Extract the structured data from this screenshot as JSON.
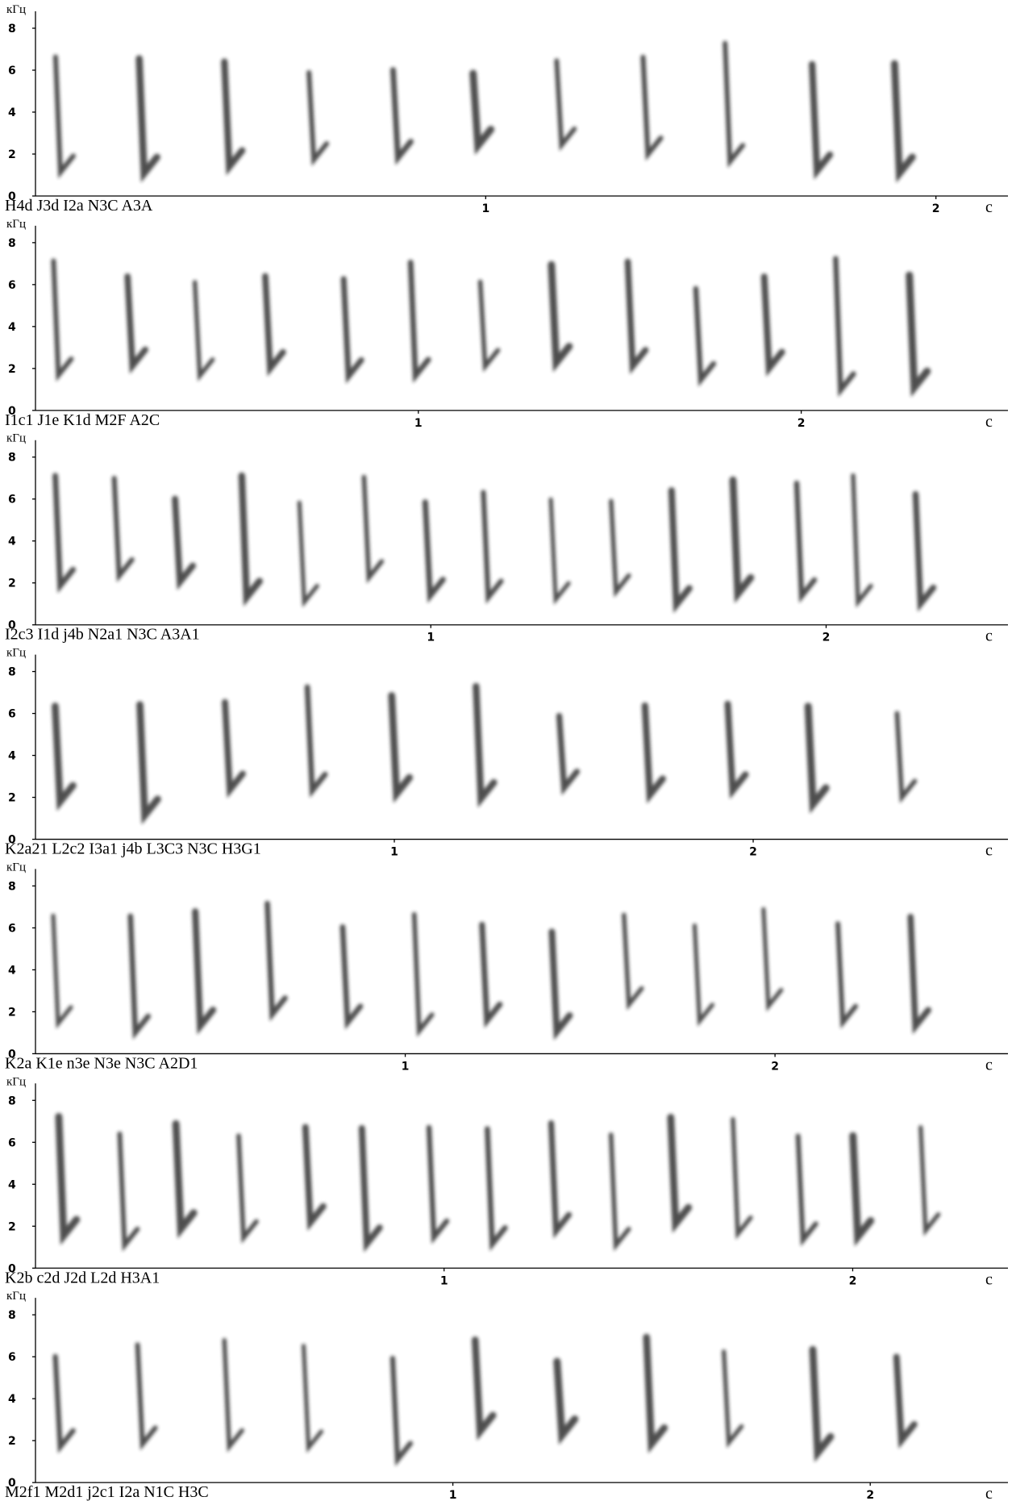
{
  "chart_data": [
    {
      "type": "spectrogram",
      "title": "H4d J3d I2a N3C A3A",
      "y_label": "кГц",
      "x_label": "с",
      "xlim": [
        0,
        2.16
      ],
      "ylim": [
        0,
        8.5
      ],
      "xticks": [
        1,
        2
      ],
      "yticks": [
        0,
        2,
        4,
        6,
        8
      ]
    },
    {
      "type": "spectrogram",
      "title": "I1c1 J1e K1d M2F A2C",
      "y_label": "кГц",
      "x_label": "с",
      "xlim": [
        0,
        2.54
      ],
      "ylim": [
        0,
        8.5
      ],
      "xticks": [
        1,
        2
      ],
      "yticks": [
        0,
        2,
        4,
        6,
        8
      ]
    },
    {
      "type": "spectrogram",
      "title": "I2c3 I1d j4b N2a1 N3C A3A1",
      "y_label": "кГц",
      "x_label": "с",
      "xlim": [
        0,
        2.46
      ],
      "ylim": [
        0,
        8.5
      ],
      "xticks": [
        1,
        2
      ],
      "yticks": [
        0,
        2,
        4,
        6,
        8
      ]
    },
    {
      "type": "spectrogram",
      "title": "K2a21 L2c2 I3a1 j4b L3C3 N3C H3G1",
      "y_label": "кГц",
      "x_label": "с",
      "xlim": [
        0,
        2.71
      ],
      "ylim": [
        0,
        8.5
      ],
      "xticks": [
        1,
        2
      ],
      "yticks": [
        0,
        2,
        4,
        6,
        8
      ]
    },
    {
      "type": "spectrogram",
      "title": "K2a K1e n3e N3e N3C A2D1",
      "y_label": "кГц",
      "x_label": "с",
      "xlim": [
        0,
        2.63
      ],
      "ylim": [
        0,
        8.5
      ],
      "xticks": [
        1,
        2
      ],
      "yticks": [
        0,
        2,
        4,
        6,
        8
      ]
    },
    {
      "type": "spectrogram",
      "title": "K2b c2d J2d L2d H3A1",
      "y_label": "кГц",
      "x_label": "с",
      "xlim": [
        0,
        2.38
      ],
      "ylim": [
        0,
        8.5
      ],
      "xticks": [
        1,
        2
      ],
      "yticks": [
        0,
        2,
        4,
        6,
        8
      ]
    },
    {
      "type": "spectrogram",
      "title": "M2f1 M2d1 j2c1 I2a N1C H3C",
      "y_label": "кГц",
      "x_label": "с",
      "xlim": [
        0,
        2.33
      ],
      "ylim": [
        0,
        8.5
      ],
      "xticks": [
        1,
        2
      ],
      "yticks": [
        0,
        2,
        4,
        6,
        8
      ]
    }
  ]
}
